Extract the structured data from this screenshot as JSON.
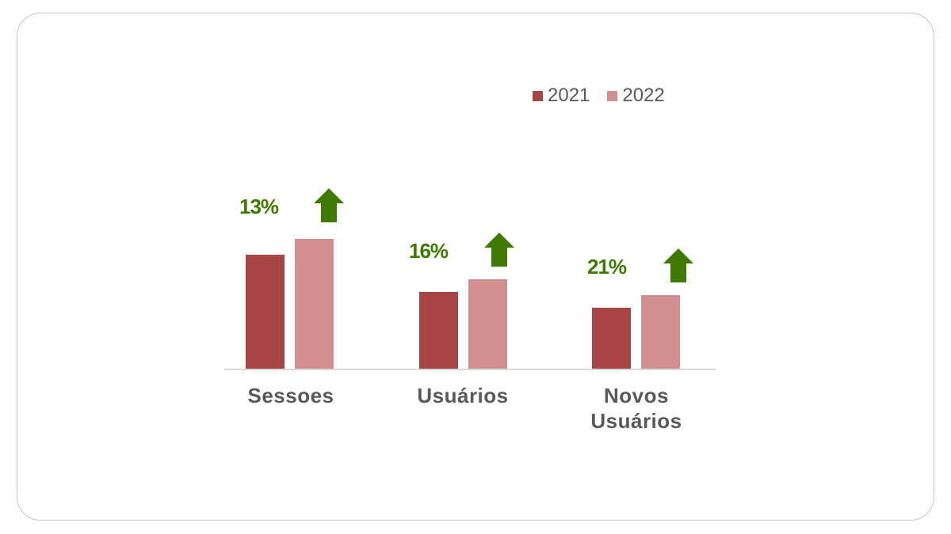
{
  "chart_data": {
    "type": "bar",
    "title": "",
    "xlabel": "",
    "ylabel": "",
    "grid": false,
    "legend_position": "top-right",
    "categories": [
      "Sessoes",
      "Usuários",
      "Novos Usuários"
    ],
    "series": [
      {
        "name": "2021",
        "color": "#a84444",
        "values": [
          145,
          98,
          78
        ]
      },
      {
        "name": "2022",
        "color": "#d38f8f",
        "values": [
          165,
          114,
          94
        ]
      }
    ],
    "values_note": "Relative bar heights (no y-axis scale shown)",
    "annotations": [
      {
        "category": "Sessoes",
        "text": "13%",
        "icon": "up-arrow-icon"
      },
      {
        "category": "Usuários",
        "text": "16%",
        "icon": "up-arrow-icon"
      },
      {
        "category": "Novos Usuários",
        "text": "21%",
        "icon": "up-arrow-icon"
      }
    ]
  },
  "legend": {
    "items": [
      {
        "label": "2021",
        "color": "#a84444"
      },
      {
        "label": "2022",
        "color": "#d38f8f"
      }
    ]
  },
  "categories": {
    "c0": "Sessoes",
    "c1_line1": "Usuários",
    "c2_line1": "Novos",
    "c2_line2": "Usuários"
  },
  "growth": {
    "g0": "13%",
    "g1": "16%",
    "g2": "21%",
    "color": "#3e7a00"
  }
}
